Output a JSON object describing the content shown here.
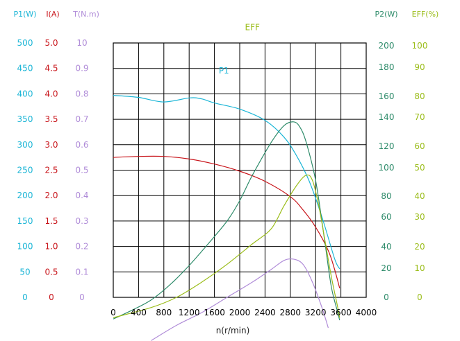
{
  "chart_data": {
    "type": "line",
    "xlabel": "n(r/min)",
    "x_ticks": [
      "0",
      "400",
      "800",
      "1200",
      "1600",
      "2000",
      "2400",
      "2800",
      "3200",
      "3600",
      "4000"
    ],
    "xlim": [
      0,
      4000
    ],
    "axes": [
      {
        "key": "P1",
        "header": "P1(W)",
        "color": "#1ab5d6",
        "ticks": [
          "0",
          "50",
          "100",
          "150",
          "200",
          "250",
          "300",
          "350",
          "400",
          "450",
          "500"
        ]
      },
      {
        "key": "I",
        "header": "I(A)",
        "color": "#c8141a",
        "ticks": [
          "0",
          "0.5",
          "1.0",
          "1.5",
          "2.0",
          "2.5",
          "3.0",
          "3.5",
          "4.0",
          "4.5",
          "5.0"
        ]
      },
      {
        "key": "T",
        "header": "T(N.m)",
        "color": "#b08cd8",
        "ticks": [
          "0",
          "0.1",
          "0.2",
          "0.3",
          "0.4",
          "0.5",
          "0.6",
          "0.7",
          "0.8",
          "0.9",
          "10"
        ]
      },
      {
        "key": "P2",
        "header": "P2(W)",
        "color": "#2e8b6a",
        "ticks": [
          "0",
          "20",
          "40",
          "60",
          "80",
          "100",
          "120",
          "140",
          "160",
          "180",
          "200"
        ]
      },
      {
        "key": "EFF",
        "header": "EFF(%)",
        "color": "#9bbd1a",
        "ticks": [
          "0",
          "10",
          "20",
          "30",
          "40",
          "50",
          "60",
          "70",
          "80",
          "90",
          "100"
        ]
      }
    ],
    "series": [
      {
        "name": "P1",
        "color": "#1ab5d6",
        "label_at": [
          1750,
          440
        ],
        "x": [
          0,
          400,
          800,
          1200,
          1400,
          1600,
          2000,
          2400,
          2700,
          2900,
          3100,
          3300,
          3500,
          3580
        ],
        "y": [
          397,
          393,
          384,
          392,
          390,
          382,
          370,
          348,
          315,
          278,
          228,
          158,
          76,
          56
        ]
      },
      {
        "name": "I",
        "color": "#c8141a",
        "label_at": [
          2480,
          370
        ],
        "x": [
          0,
          400,
          800,
          1200,
          1600,
          2000,
          2400,
          2800,
          3000,
          3200,
          3400,
          3500,
          3580
        ],
        "y": [
          2.75,
          2.77,
          2.77,
          2.72,
          2.62,
          2.48,
          2.28,
          1.98,
          1.72,
          1.38,
          0.92,
          0.55,
          0.18
        ]
      },
      {
        "name": "P2",
        "color": "#2e8b6a",
        "label_at": [
          2000,
          240
        ],
        "x": [
          0,
          300,
          600,
          900,
          1200,
          1500,
          1800,
          2000,
          2200,
          2500,
          2700,
          2850,
          2950,
          3050,
          3200,
          3350,
          3450,
          3550,
          3580
        ],
        "y": [
          -17,
          -10,
          -2,
          10,
          25,
          42,
          60,
          76,
          96,
          122,
          135,
          138,
          134,
          122,
          92,
          42,
          8,
          -12,
          -18
        ]
      },
      {
        "name": "EFF",
        "color": "#9bbd1a",
        "label_at": [
          2200,
          105
        ],
        "x": [
          0,
          600,
          1000,
          1400,
          1800,
          2200,
          2500,
          2700,
          2900,
          3050,
          3150,
          3250,
          3350,
          3450,
          3550,
          3580
        ],
        "y": [
          -8,
          -4,
          0,
          6,
          13,
          21,
          27,
          36,
          44,
          48,
          46,
          36,
          22,
          8,
          -4,
          -8
        ]
      },
      {
        "name": "T",
        "color": "#b08cd8",
        "label_at": [
          120,
          57
        ],
        "x": [
          600,
          1000,
          1400,
          1800,
          2200,
          2500,
          2700,
          2850,
          3000,
          3150,
          3300,
          3400
        ],
        "y": [
          -0.17,
          -0.11,
          -0.06,
          0,
          0.06,
          0.11,
          0.145,
          0.15,
          0.13,
          0.06,
          -0.04,
          -0.12
        ]
      }
    ],
    "grid": true
  }
}
